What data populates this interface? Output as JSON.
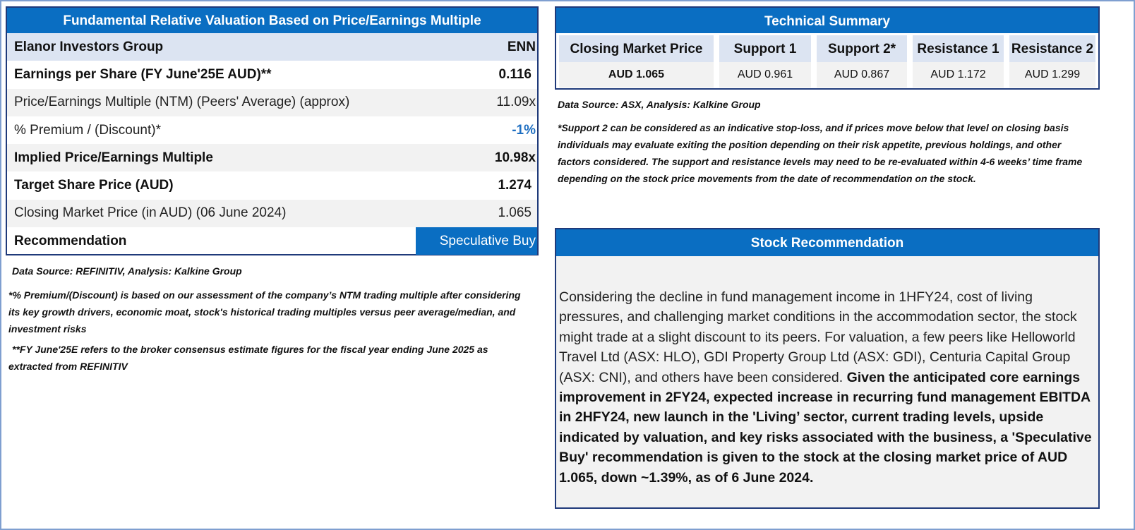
{
  "valuation": {
    "title": "Fundamental Relative Valuation Based on Price/Earnings Multiple",
    "company": "Elanor Investors Group",
    "ticker": "ENN",
    "rows": [
      {
        "label": "Earnings per Share (FY June'25E AUD)**",
        "value": "0.116"
      },
      {
        "label": "Price/Earnings Multiple (NTM)  (Peers' Average) (approx)",
        "value": "11.09x"
      },
      {
        "label": "% Premium / (Discount)*",
        "value": "-1%"
      },
      {
        "label": "Implied Price/Earnings Multiple",
        "value": "10.98x"
      },
      {
        "label": "Target Share Price (AUD)",
        "value": "1.274"
      },
      {
        "label": "Closing Market Price (in AUD) (06 June 2024)",
        "value": "1.065"
      },
      {
        "label": "Recommendation",
        "value": "Speculative Buy"
      }
    ],
    "source": "Data Source: REFINITIV, Analysis: Kalkine Group",
    "note1": "*% Premium/(Discount) is based on our assessment of the company’s NTM trading multiple after considering its key growth drivers, economic moat, stock's historical trading multiples versus peer average/median, and investment risks",
    "note2": "**FY June'25E refers to the broker consensus estimate figures for the fiscal year ending June 2025  as extracted from REFINITIV"
  },
  "technical": {
    "title": "Technical Summary",
    "headers": [
      "Closing Market Price",
      "Support 1",
      "Support 2*",
      "Resistance 1",
      "Resistance 2"
    ],
    "values": [
      "AUD 1.065",
      "AUD 0.961",
      "AUD 0.867",
      "AUD 1.172",
      "AUD 1.299"
    ],
    "source": "Data Source: ASX, Analysis: Kalkine Group",
    "note": "*Support 2 can be considered as an indicative stop-loss, and if prices move below that level on closing basis individuals may evaluate exiting the position depending on their risk appetite, previous holdings, and other factors considered. The support and resistance levels may need to be re-evaluated within 4-6 weeks’ time frame depending on the stock price movements from the date of recommendation on the stock."
  },
  "recommendation": {
    "title": "Stock Recommendation",
    "text_plain": "Considering the decline in fund management income in 1HFY24, cost of living pressures, and challenging market conditions in the accommodation sector, the stock might trade at a slight discount to its peers. For valuation, a few peers like Helloworld Travel Ltd (ASX: HLO), GDI Property Group Ltd (ASX: GDI), Centuria Capital Group (ASX: CNI), and others have been considered. ",
    "text_bold": "Given the anticipated core earnings improvement in 2FY24, expected increase in recurring fund management EBITDA in 2HFY24, new launch in the 'Living’ sector, current trading levels, upside indicated by valuation, and key risks associated with the business, a 'Speculative Buy' recommendation is given to the stock at the closing market price of AUD 1.065, down ~1.39%, as of 6 June 2024."
  },
  "colors": {
    "header_blue": "#0a6ec2",
    "subheader": "#dce4f2",
    "border": "#1f3a7a"
  }
}
